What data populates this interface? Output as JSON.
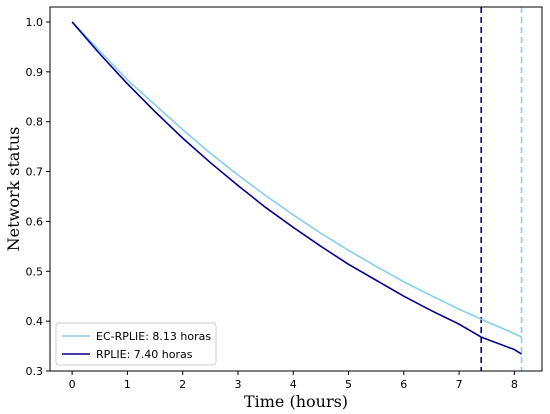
{
  "chart_data": {
    "type": "line",
    "title": "",
    "xlabel": "Time (hours)",
    "ylabel": "Network status",
    "xlim": [
      -0.4,
      8.5
    ],
    "ylim": [
      0.3,
      1.03
    ],
    "xticks": [
      "0",
      "1",
      "2",
      "3",
      "4",
      "5",
      "6",
      "7",
      "8"
    ],
    "yticks": [
      "0.3",
      "0.4",
      "0.5",
      "0.6",
      "0.7",
      "0.8",
      "0.9",
      "1.0"
    ],
    "grid": false,
    "legend_position": "lower-left",
    "series": [
      {
        "name": "EC-RPLIE: 8.13 horas",
        "color": "#87CEEB",
        "x": [
          0,
          0.5,
          1,
          1.5,
          2,
          2.5,
          3,
          3.5,
          4,
          4.5,
          5,
          5.5,
          6,
          6.5,
          7,
          7.5,
          8,
          8.13
        ],
        "y": [
          1.0,
          0.942,
          0.884,
          0.834,
          0.784,
          0.737,
          0.693,
          0.652,
          0.613,
          0.576,
          0.542,
          0.51,
          0.479,
          0.451,
          0.424,
          0.399,
          0.375,
          0.368
        ],
        "end_marker_x": 8.13
      },
      {
        "name": "RPLIE: 7.40 horas",
        "color": "#00008B",
        "x": [
          0,
          0.5,
          1,
          1.5,
          2,
          2.5,
          3,
          3.5,
          4,
          4.5,
          5,
          5.5,
          6,
          6.5,
          7,
          7.4,
          8,
          8.13
        ],
        "y": [
          1.0,
          0.936,
          0.876,
          0.82,
          0.767,
          0.718,
          0.672,
          0.628,
          0.588,
          0.55,
          0.514,
          0.482,
          0.45,
          0.421,
          0.394,
          0.368,
          0.343,
          0.334
        ],
        "end_marker_x": 7.4
      }
    ]
  }
}
